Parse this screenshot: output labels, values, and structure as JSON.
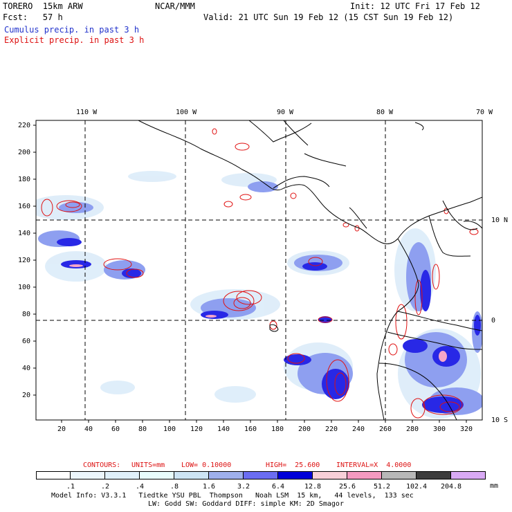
{
  "header": {
    "model": "TORERO  15km ARW",
    "org": "NCAR/MMM",
    "init": "Init: 12 UTC Fri 17 Feb 12",
    "fcst": "Fcst:   57 h",
    "valid": "Valid: 21 UTC Sun 19 Feb 12 (15 CST Sun 19 Feb 12)",
    "line_cumulus": "Cumulus precip. in past 3 h",
    "line_explicit": "Explicit precip. in past 3 h"
  },
  "axes": {
    "top_lon": [
      "110 W",
      "100 W",
      "90 W",
      "80 W",
      "70 W"
    ],
    "right_lat": [
      "10 N",
      "0",
      "10 S"
    ],
    "left_y": [
      "220",
      "200",
      "180",
      "160",
      "140",
      "120",
      "100",
      "80",
      "60",
      "40",
      "20"
    ],
    "bottom_x": [
      "20",
      "40",
      "60",
      "80",
      "100",
      "120",
      "140",
      "160",
      "180",
      "200",
      "220",
      "240",
      "260",
      "280",
      "300",
      "320"
    ]
  },
  "contours_line": {
    "title": "CONTOURS:",
    "units": "UNITS=mm",
    "low": "LOW= 0.10000",
    "high": "HIGH=  25.600",
    "interval": "INTERVAL=X  4.0000"
  },
  "colorbar": {
    "labels": [
      ".1",
      ".2",
      ".4",
      ".8",
      "1.6",
      "3.2",
      "6.4",
      "12.8",
      "25.6",
      "51.2",
      "102.4",
      "204.8"
    ],
    "unit": "mm",
    "colors": [
      "#ffffff",
      "#ecf6fc",
      "#e0f0fa",
      "#e8fcfc",
      "#cde4f4",
      "#9fb0ec",
      "#6b6df2",
      "#3030f4",
      "#0000d8",
      "#f8d0d8",
      "#f59ac0",
      "#b8b8b8",
      "#3c3c3c",
      "#d9aaf5"
    ]
  },
  "footer": {
    "line1": "Model Info: V3.3.1   Tiedtke YSU PBL  Thompson   Noah LSM  15 km,   44 levels,  133 sec",
    "line2": "LW: Godd SW: Goddard DIFF: simple KM: 2D Smagor"
  }
}
